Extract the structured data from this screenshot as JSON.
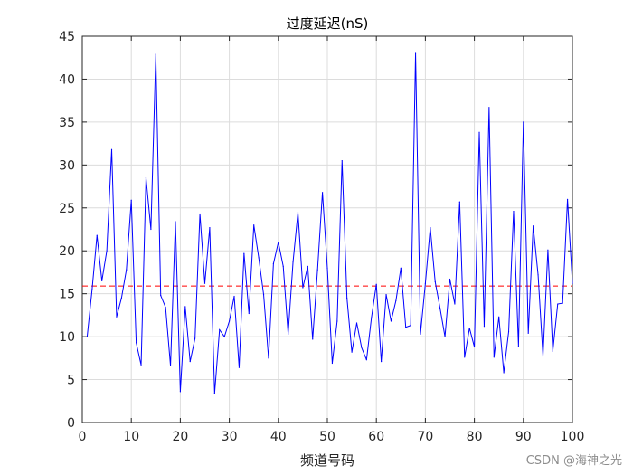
{
  "chart_data": {
    "type": "line",
    "title": "过度延迟(nS)",
    "xlabel": "频道号码",
    "ylabel": "",
    "xlim": [
      0,
      100
    ],
    "ylim": [
      0,
      45
    ],
    "xticks": [
      0,
      10,
      20,
      30,
      40,
      50,
      60,
      70,
      80,
      90,
      100
    ],
    "yticks": [
      0,
      5,
      10,
      15,
      20,
      25,
      30,
      35,
      40,
      45
    ],
    "grid": true,
    "colors": {
      "series": "#0000ff",
      "reference": "#ff0000",
      "grid": "#dcdcdc",
      "axes": "#262626"
    },
    "series": [
      {
        "x": [
          1,
          2,
          3,
          4,
          5,
          6,
          7,
          8,
          9,
          10,
          11,
          12,
          13,
          14,
          15,
          16,
          17,
          18,
          19,
          20,
          21,
          22,
          23,
          24,
          25,
          26,
          27,
          28,
          29,
          30,
          31,
          32,
          33,
          34,
          35,
          36,
          37,
          38,
          39,
          40,
          41,
          42,
          43,
          44,
          45,
          46,
          47,
          48,
          49,
          50,
          51,
          52,
          53,
          54,
          55,
          56,
          57,
          58,
          59,
          60,
          61,
          62,
          63,
          64,
          65,
          66,
          67,
          68,
          69,
          70,
          71,
          72,
          73,
          74,
          75,
          76,
          77,
          78,
          79,
          80,
          81,
          82,
          83,
          84,
          85,
          86,
          87,
          88,
          89,
          90,
          91,
          92,
          93,
          94,
          95,
          96,
          97,
          98,
          99,
          100
        ],
        "values": [
          10,
          15.5,
          21.8,
          16.5,
          20,
          31.8,
          12.3,
          14.5,
          17.8,
          25.9,
          9.3,
          6.7,
          28.5,
          22.5,
          42.9,
          14.8,
          13.4,
          6.6,
          23.4,
          3.6,
          13.5,
          7.1,
          9.8,
          24.3,
          16.2,
          22.7,
          3.4,
          10.8,
          10,
          11.8,
          14.7,
          6.4,
          19.7,
          12.7,
          23,
          19.2,
          14.9,
          7.5,
          18.5,
          21,
          18.2,
          10.3,
          18.7,
          24.5,
          15.7,
          18.2,
          9.7,
          17.8,
          26.8,
          18,
          6.9,
          11.8,
          30.5,
          14.5,
          8.2,
          11.6,
          8.7,
          7.3,
          12.2,
          16.1,
          7.1,
          14.9,
          11.8,
          14.2,
          18,
          11.1,
          11.3,
          43,
          10.3,
          16.2,
          22.7,
          16.4,
          13.3,
          10,
          16.7,
          13.8,
          25.7,
          7.6,
          11,
          8.8,
          33.8,
          11.2,
          36.7,
          7.6,
          12.3,
          5.8,
          10.6,
          24.6,
          8.9,
          35,
          10.4,
          22.9,
          17.2,
          7.7,
          20.1,
          8.3,
          13.8,
          13.9,
          26,
          16.2
        ]
      }
    ],
    "reference_line": {
      "y": 15.9,
      "style": "dashed"
    }
  },
  "watermark": "CSDN @海神之光"
}
